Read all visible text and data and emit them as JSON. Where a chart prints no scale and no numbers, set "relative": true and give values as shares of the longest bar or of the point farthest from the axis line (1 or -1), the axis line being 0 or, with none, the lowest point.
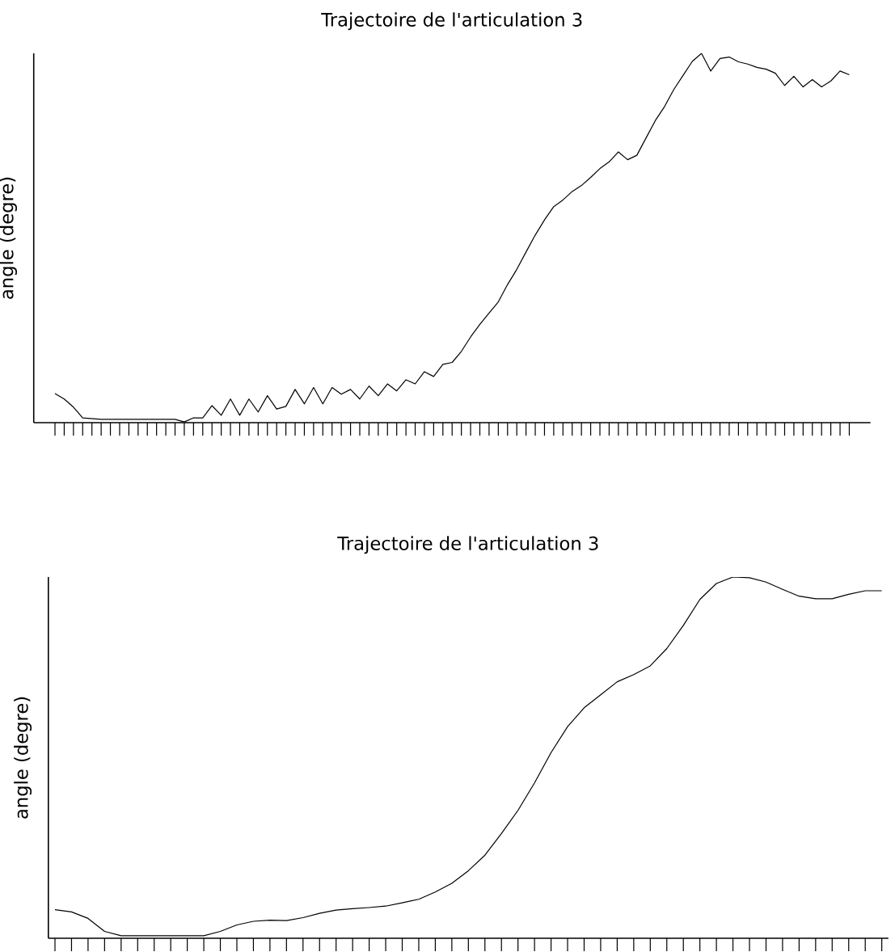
{
  "chart_data": [
    {
      "type": "line",
      "title": "Trajectoire de l'articulation 3",
      "ylabel": "angle (degre)",
      "relative": true,
      "tick_labels": false,
      "color": "#000000",
      "line_style": "solid",
      "categories": [
        null,
        null,
        null,
        null,
        null,
        null,
        null,
        null,
        null,
        null,
        null,
        null,
        null,
        null,
        null,
        null,
        null,
        null,
        null,
        null,
        null,
        null,
        null,
        null,
        null,
        null,
        null,
        null,
        null,
        null,
        null,
        null,
        null,
        null,
        null,
        null,
        null,
        null,
        null,
        null,
        null,
        null,
        null,
        null,
        null,
        null,
        null,
        null,
        null,
        null,
        null,
        null,
        null,
        null,
        null,
        null,
        null,
        null,
        null,
        null,
        null,
        null,
        null,
        null,
        null,
        null,
        null,
        null,
        null,
        null,
        null,
        null,
        null,
        null,
        null,
        null,
        null,
        null,
        null,
        null,
        null,
        null,
        null,
        null,
        null,
        null,
        null
      ],
      "values": [
        0.079,
        0.064,
        0.042,
        0.013,
        0.011,
        0.009,
        0.009,
        0.009,
        0.009,
        0.009,
        0.009,
        0.009,
        0.009,
        0.009,
        0.002,
        0.013,
        0.013,
        0.046,
        0.02,
        0.064,
        0.02,
        0.064,
        0.029,
        0.073,
        0.037,
        0.044,
        0.09,
        0.051,
        0.095,
        0.051,
        0.095,
        0.077,
        0.09,
        0.064,
        0.099,
        0.073,
        0.105,
        0.086,
        0.116,
        0.105,
        0.138,
        0.125,
        0.158,
        0.163,
        0.193,
        0.232,
        0.266,
        0.297,
        0.327,
        0.374,
        0.415,
        0.462,
        0.508,
        0.549,
        0.585,
        0.603,
        0.626,
        0.642,
        0.664,
        0.688,
        0.706,
        0.733,
        0.712,
        0.724,
        0.771,
        0.818,
        0.856,
        0.902,
        0.94,
        0.978,
        1.0,
        0.952,
        0.986,
        0.99,
        0.977,
        0.971,
        0.962,
        0.957,
        0.946,
        0.913,
        0.938,
        0.909,
        0.929,
        0.909,
        0.925,
        0.952,
        0.942
      ]
    },
    {
      "type": "line",
      "title": "Trajectoire de l'articulation 3",
      "ylabel": "angle (degre)",
      "relative": true,
      "tick_labels": false,
      "color": "#000000",
      "line_style": "solid",
      "categories": [
        null,
        null,
        null,
        null,
        null,
        null,
        null,
        null,
        null,
        null,
        null,
        null,
        null,
        null,
        null,
        null,
        null,
        null,
        null,
        null,
        null,
        null,
        null,
        null,
        null,
        null,
        null,
        null,
        null,
        null,
        null,
        null,
        null,
        null,
        null,
        null,
        null,
        null,
        null,
        null,
        null,
        null,
        null,
        null,
        null,
        null,
        null,
        null,
        null,
        null,
        null
      ],
      "values": [
        0.079,
        0.073,
        0.055,
        0.019,
        0.007,
        0.007,
        0.007,
        0.007,
        0.007,
        0.007,
        0.019,
        0.037,
        0.047,
        0.05,
        0.049,
        0.057,
        0.069,
        0.078,
        0.082,
        0.085,
        0.089,
        0.098,
        0.108,
        0.128,
        0.152,
        0.187,
        0.23,
        0.29,
        0.354,
        0.43,
        0.514,
        0.586,
        0.638,
        0.674,
        0.71,
        0.73,
        0.754,
        0.802,
        0.866,
        0.938,
        0.982,
        1.0,
        0.998,
        0.986,
        0.966,
        0.947,
        0.94,
        0.94,
        0.952,
        0.962,
        0.962
      ]
    }
  ]
}
